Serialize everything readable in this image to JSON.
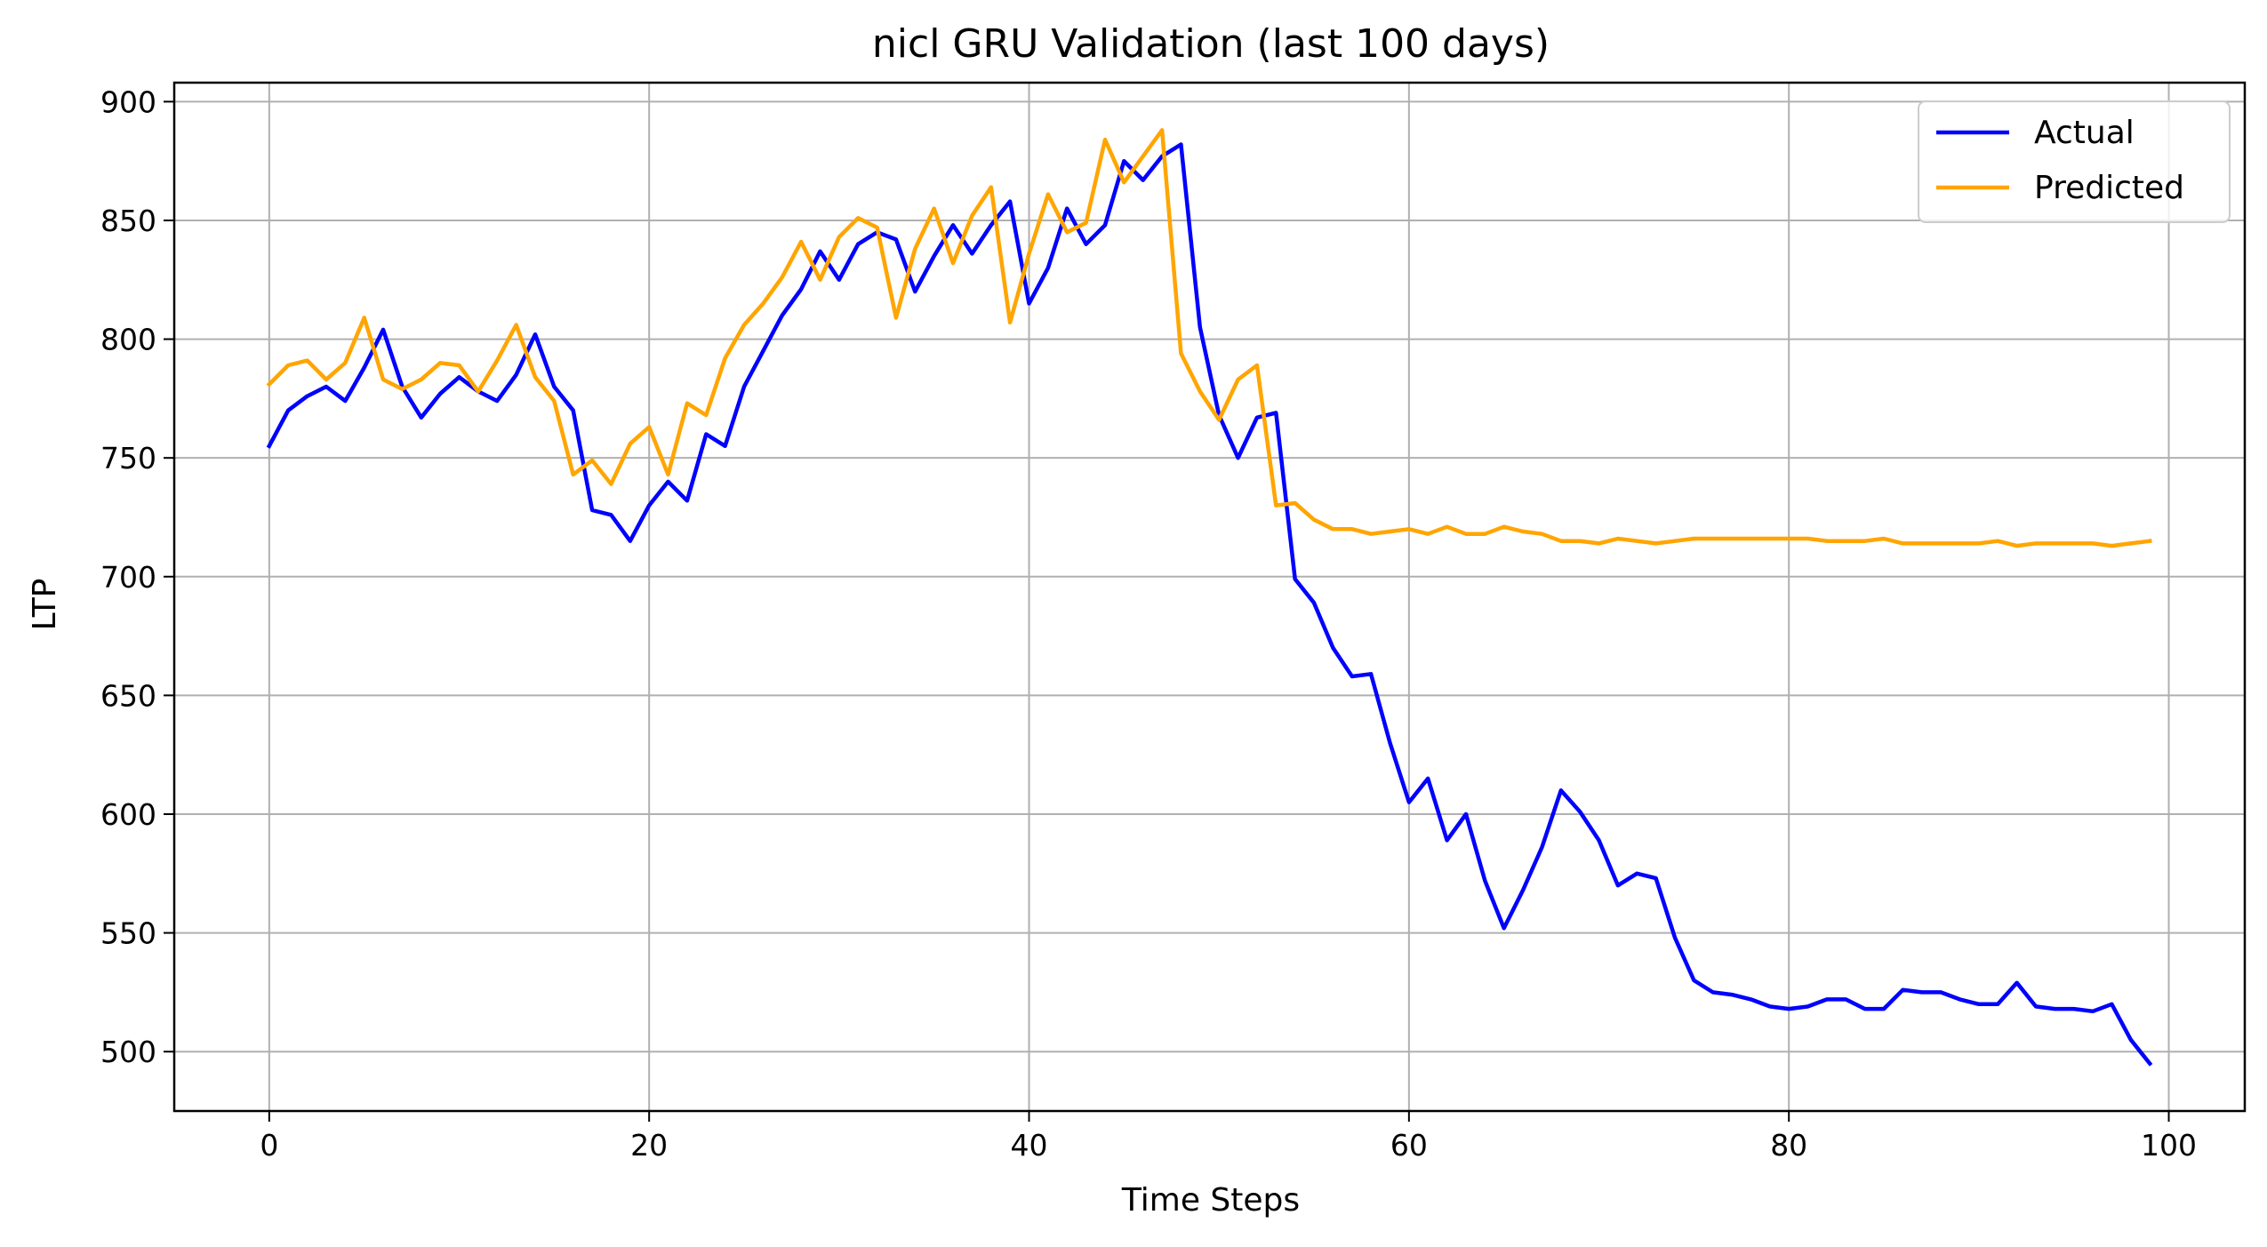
{
  "chart_data": {
    "type": "line",
    "title": "nicl GRU Validation (last 100 days)",
    "xlabel": "Time Steps",
    "ylabel": "LTP",
    "xlim": [
      -5,
      104
    ],
    "ylim": [
      475,
      908
    ],
    "xticks": [
      0,
      20,
      40,
      60,
      80,
      100
    ],
    "yticks": [
      500,
      550,
      600,
      650,
      700,
      750,
      800,
      850,
      900
    ],
    "grid": true,
    "legend_position": "top-right",
    "x": [
      0,
      1,
      2,
      3,
      4,
      5,
      6,
      7,
      8,
      9,
      10,
      11,
      12,
      13,
      14,
      15,
      16,
      17,
      18,
      19,
      20,
      21,
      22,
      23,
      24,
      25,
      26,
      27,
      28,
      29,
      30,
      31,
      32,
      33,
      34,
      35,
      36,
      37,
      38,
      39,
      40,
      41,
      42,
      43,
      44,
      45,
      46,
      47,
      48,
      49,
      50,
      51,
      52,
      53,
      54,
      55,
      56,
      57,
      58,
      59,
      60,
      61,
      62,
      63,
      64,
      65,
      66,
      67,
      68,
      69,
      70,
      71,
      72,
      73,
      74,
      75,
      76,
      77,
      78,
      79,
      80,
      81,
      82,
      83,
      84,
      85,
      86,
      87,
      88,
      89,
      90,
      91,
      92,
      93,
      94,
      95,
      96,
      97,
      98,
      99
    ],
    "series": [
      {
        "name": "Actual",
        "color": "#0000ff",
        "values": [
          755,
          770,
          776,
          780,
          774,
          788,
          804,
          780,
          767,
          777,
          784,
          778,
          774,
          785,
          802,
          780,
          770,
          728,
          726,
          715,
          730,
          740,
          732,
          760,
          755,
          780,
          795,
          810,
          821,
          837,
          825,
          840,
          845,
          842,
          820,
          835,
          848,
          836,
          848,
          858,
          815,
          830,
          855,
          840,
          848,
          875,
          867,
          877,
          882,
          805,
          768,
          750,
          767,
          769,
          699,
          689,
          670,
          658,
          659,
          630,
          605,
          615,
          589,
          600,
          572,
          552,
          568,
          586,
          610,
          601,
          589,
          570,
          575,
          573,
          548,
          530,
          525,
          524,
          522,
          519,
          518,
          519,
          522,
          522,
          518,
          518,
          526,
          525,
          525,
          522,
          520,
          520,
          529,
          519,
          518,
          518,
          517,
          520,
          505,
          495
        ]
      },
      {
        "name": "Predicted",
        "color": "#ffa500",
        "values": [
          781,
          789,
          791,
          783,
          790,
          809,
          783,
          779,
          783,
          790,
          789,
          778,
          791,
          806,
          784,
          774,
          743,
          749,
          739,
          756,
          763,
          743,
          773,
          768,
          792,
          806,
          815,
          826,
          841,
          825,
          843,
          851,
          847,
          809,
          838,
          855,
          832,
          852,
          864,
          807,
          836,
          861,
          845,
          849,
          884,
          866,
          877,
          888,
          794,
          778,
          766,
          783,
          789,
          730,
          731,
          724,
          720,
          720,
          718,
          719,
          720,
          718,
          721,
          718,
          718,
          721,
          719,
          718,
          715,
          715,
          714,
          716,
          715,
          714,
          715,
          716,
          716,
          716,
          716,
          716,
          716,
          716,
          715,
          715,
          715,
          716,
          714,
          714,
          714,
          714,
          714,
          715,
          713,
          714,
          714,
          714,
          714,
          713,
          714,
          715
        ]
      }
    ]
  }
}
